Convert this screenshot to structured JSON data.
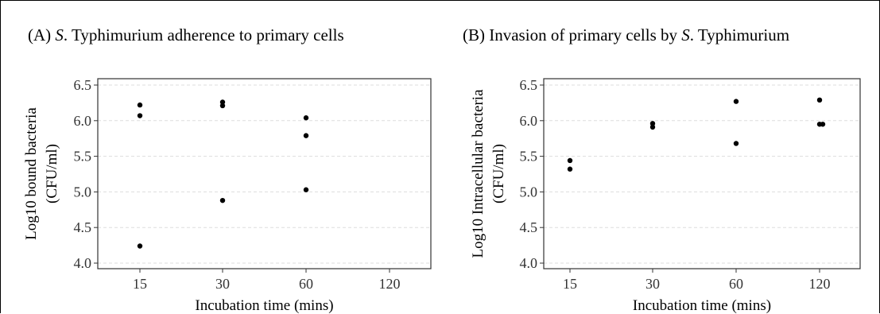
{
  "colors": {
    "points": "#000000",
    "grid": "#dddddd",
    "axis_frame": "#333333"
  },
  "chart_data": [
    {
      "type": "scatter",
      "title_prefix": "(A) ",
      "title_italic": "S",
      "title_suffix": ". Typhimurium  adherence  to primary  cells",
      "xlabel": "Incubation time (mins)",
      "ylabel_line1": "Log10 bound bacteria",
      "ylabel_line2": "(CFU/ml)",
      "categories": [
        "15",
        "30",
        "60",
        "120"
      ],
      "ylim": [
        4.0,
        6.5
      ],
      "yticks": [
        "4.0",
        "4.5",
        "5.0",
        "5.5",
        "6.0",
        "6.5"
      ],
      "grid": "horizontal-dashed",
      "points": [
        {
          "x": "15",
          "y": 6.22
        },
        {
          "x": "15",
          "y": 6.07
        },
        {
          "x": "15",
          "y": 4.24
        },
        {
          "x": "30",
          "y": 6.26
        },
        {
          "x": "30",
          "y": 6.21
        },
        {
          "x": "30",
          "y": 4.88
        },
        {
          "x": "60",
          "y": 6.04
        },
        {
          "x": "60",
          "y": 5.79
        },
        {
          "x": "60",
          "y": 5.03
        }
      ]
    },
    {
      "type": "scatter",
      "title_prefix": "(B) Invasion of primary  cells by ",
      "title_italic": "S",
      "title_suffix": ". Typhimurium",
      "xlabel": "Incubation time (mins)",
      "ylabel_line1": "Log10 Intracellular  bacteria",
      "ylabel_line2": "(CFU/ml)",
      "categories": [
        "15",
        "30",
        "60",
        "120"
      ],
      "ylim": [
        4.0,
        6.5
      ],
      "yticks": [
        "4.0",
        "4.5",
        "5.0",
        "5.5",
        "6.0",
        "6.5"
      ],
      "grid": "horizontal-dashed",
      "points": [
        {
          "x": "15",
          "y": 5.44
        },
        {
          "x": "15",
          "y": 5.32
        },
        {
          "x": "30",
          "y": 5.96
        },
        {
          "x": "30",
          "y": 5.91
        },
        {
          "x": "60",
          "y": 6.27
        },
        {
          "x": "60",
          "y": 5.68
        },
        {
          "x": "120",
          "y": 6.29
        },
        {
          "x": "120",
          "y": 5.95
        },
        {
          "x": "120",
          "y": 5.95
        }
      ]
    }
  ]
}
